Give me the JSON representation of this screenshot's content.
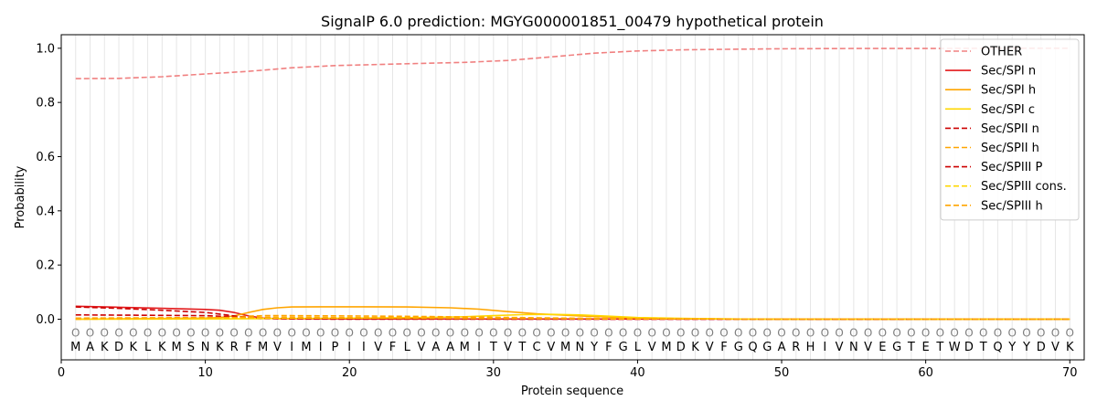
{
  "chart_data": {
    "type": "line",
    "title": "SignalP 6.0 prediction: MGYG000001851_00479 hypothetical protein",
    "xlabel": "Protein sequence",
    "ylabel": "Probability",
    "xlim": [
      0,
      71
    ],
    "ylim": [
      -0.15,
      1.05
    ],
    "x_ticks": [
      "0",
      "10",
      "20",
      "30",
      "40",
      "50",
      "60",
      "70"
    ],
    "y_ticks": [
      "0.0",
      "0.2",
      "0.4",
      "0.6",
      "0.8",
      "1.0"
    ],
    "grid": "vertical per residue",
    "legend_position": "top-right",
    "sequence": [
      "M",
      "A",
      "K",
      "D",
      "K",
      "L",
      "K",
      "M",
      "S",
      "N",
      "K",
      "R",
      "F",
      "M",
      "V",
      "I",
      "M",
      "I",
      "P",
      "I",
      "I",
      "V",
      "F",
      "L",
      "V",
      "A",
      "A",
      "M",
      "I",
      "T",
      "V",
      "T",
      "C",
      "V",
      "M",
      "N",
      "Y",
      "F",
      "G",
      "L",
      "V",
      "M",
      "D",
      "K",
      "V",
      "F",
      "G",
      "Q",
      "G",
      "A",
      "R",
      "H",
      "I",
      "V",
      "N",
      "V",
      "E",
      "G",
      "T",
      "E",
      "T",
      "W",
      "D",
      "T",
      "Q",
      "Y",
      "Y",
      "D",
      "V",
      "K"
    ],
    "residue_marker": "O",
    "series": [
      {
        "name": "OTHER",
        "color": "#f08080",
        "dash": true,
        "x": [
          1,
          4,
          7,
          10,
          13,
          16,
          19,
          22,
          25,
          28,
          31,
          34,
          37,
          40,
          43,
          46,
          50,
          55,
          60,
          65,
          70
        ],
        "values": [
          0.888,
          0.889,
          0.895,
          0.905,
          0.915,
          0.928,
          0.936,
          0.94,
          0.944,
          0.948,
          0.955,
          0.968,
          0.982,
          0.99,
          0.994,
          0.996,
          0.998,
          0.999,
          0.999,
          1.0,
          1.0
        ]
      },
      {
        "name": "Sec/SPI n",
        "color": "#e31a1c",
        "dash": false,
        "x": [
          1,
          4,
          7,
          10,
          11,
          12,
          13,
          14,
          15,
          20,
          70
        ],
        "values": [
          0.048,
          0.044,
          0.04,
          0.036,
          0.033,
          0.025,
          0.012,
          0.004,
          0.002,
          0.001,
          0.0
        ]
      },
      {
        "name": "Sec/SPI h",
        "color": "#ffa500",
        "dash": false,
        "x": [
          1,
          5,
          10,
          11,
          12,
          13,
          14,
          15,
          16,
          18,
          21,
          24,
          27,
          29,
          31,
          33,
          36,
          39,
          42,
          50,
          70
        ],
        "values": [
          0.0,
          0.002,
          0.004,
          0.006,
          0.012,
          0.025,
          0.036,
          0.042,
          0.045,
          0.046,
          0.046,
          0.045,
          0.042,
          0.037,
          0.028,
          0.02,
          0.012,
          0.006,
          0.002,
          0.0,
          0.0
        ]
      },
      {
        "name": "Sec/SPI c",
        "color": "#ffd700",
        "dash": false,
        "x": [
          1,
          10,
          20,
          25,
          28,
          30,
          32,
          34,
          36,
          38,
          40,
          43,
          46,
          50,
          70
        ],
        "values": [
          0.0,
          0.001,
          0.004,
          0.006,
          0.009,
          0.013,
          0.017,
          0.018,
          0.016,
          0.011,
          0.006,
          0.003,
          0.001,
          0.0,
          0.0
        ]
      },
      {
        "name": "Sec/SPII n",
        "color": "#cc0000",
        "dash": true,
        "x": [
          1,
          4,
          7,
          10,
          11,
          12,
          13,
          14,
          16,
          20,
          70
        ],
        "values": [
          0.045,
          0.04,
          0.033,
          0.025,
          0.019,
          0.012,
          0.006,
          0.003,
          0.001,
          0.0,
          0.0
        ]
      },
      {
        "name": "Sec/SPII h",
        "color": "#ffa500",
        "dash": true,
        "x": [
          1,
          5,
          10,
          12,
          13,
          14,
          16,
          20,
          25,
          30,
          35,
          40,
          50,
          70
        ],
        "values": [
          0.0,
          0.002,
          0.004,
          0.008,
          0.011,
          0.013,
          0.013,
          0.012,
          0.01,
          0.007,
          0.004,
          0.002,
          0.0,
          0.0
        ]
      },
      {
        "name": "Sec/SPIII P",
        "color": "#cc0000",
        "dash": true,
        "x": [
          1,
          5,
          10,
          12,
          14,
          16,
          20,
          70
        ],
        "values": [
          0.016,
          0.015,
          0.013,
          0.009,
          0.004,
          0.002,
          0.001,
          0.0
        ]
      },
      {
        "name": "Sec/SPIII cons.",
        "color": "#ffd700",
        "dash": true,
        "x": [
          1,
          10,
          20,
          30,
          40,
          70
        ],
        "values": [
          0.003,
          0.004,
          0.004,
          0.003,
          0.001,
          0.0
        ]
      },
      {
        "name": "Sec/SPIII h",
        "color": "#ffa500",
        "dash": true,
        "x": [
          1,
          10,
          15,
          20,
          30,
          40,
          70
        ],
        "values": [
          0.004,
          0.006,
          0.007,
          0.006,
          0.004,
          0.001,
          0.0
        ]
      }
    ]
  }
}
